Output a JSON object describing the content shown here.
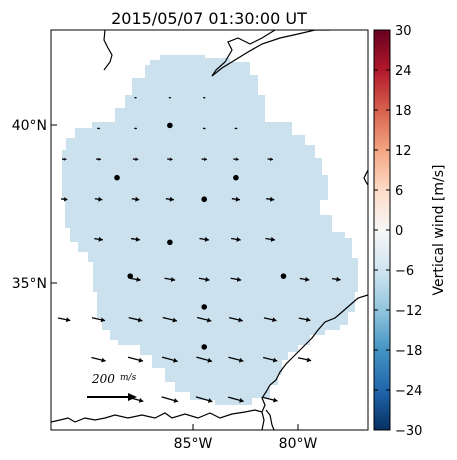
{
  "chart_data": {
    "type": "map",
    "title": "2015/05/07 01:30:00 UT",
    "x_ticks": [
      "85°W",
      "80°W"
    ],
    "y_ticks": [
      "40°N",
      "35°N"
    ],
    "lon_range": [
      -89,
      -77
    ],
    "lat_range": [
      30,
      43
    ],
    "colorbar": {
      "label": "Vertical wind [m/s]",
      "range": [
        -30,
        30
      ],
      "ticks": [
        "30",
        "24",
        "18",
        "12",
        "6",
        "0",
        "−6",
        "−12",
        "−18",
        "−24",
        "−30"
      ],
      "colormap": "RdBu_r"
    },
    "coverage_value_m_s": -5,
    "coverage_color": "#cce1ee",
    "stations": [
      {
        "lon": -84.5,
        "lat": 39.9
      },
      {
        "lon": -86.5,
        "lat": 38.2
      },
      {
        "lon": -82.0,
        "lat": 38.2
      },
      {
        "lon": -83.2,
        "lat": 37.5
      },
      {
        "lon": -84.5,
        "lat": 36.1
      },
      {
        "lon": -86.0,
        "lat": 35.0
      },
      {
        "lon": -80.2,
        "lat": 35.0
      },
      {
        "lon": -83.2,
        "lat": 34.0
      },
      {
        "lon": -83.2,
        "lat": 32.7
      }
    ],
    "wind_vectors": [
      {
        "lon": -85.8,
        "lat": 40.8,
        "speed": 10
      },
      {
        "lon": -84.5,
        "lat": 40.8,
        "speed": 10
      },
      {
        "lon": -83.2,
        "lat": 40.8,
        "speed": 10
      },
      {
        "lon": -87.2,
        "lat": 39.8,
        "speed": 12
      },
      {
        "lon": -85.8,
        "lat": 39.8,
        "speed": 12
      },
      {
        "lon": -83.2,
        "lat": 39.8,
        "speed": 12
      },
      {
        "lon": -82.0,
        "lat": 39.8,
        "speed": 12
      },
      {
        "lon": -88.5,
        "lat": 38.8,
        "speed": 20
      },
      {
        "lon": -87.2,
        "lat": 38.8,
        "speed": 22
      },
      {
        "lon": -85.8,
        "lat": 38.8,
        "speed": 25
      },
      {
        "lon": -84.5,
        "lat": 38.8,
        "speed": 25
      },
      {
        "lon": -83.2,
        "lat": 38.8,
        "speed": 25
      },
      {
        "lon": -82.0,
        "lat": 38.8,
        "speed": 25
      },
      {
        "lon": -80.7,
        "lat": 38.8,
        "speed": 25
      },
      {
        "lon": -88.5,
        "lat": 37.5,
        "speed": 30
      },
      {
        "lon": -87.2,
        "lat": 37.5,
        "speed": 35
      },
      {
        "lon": -85.8,
        "lat": 37.5,
        "speed": 35
      },
      {
        "lon": -84.5,
        "lat": 37.5,
        "speed": 38
      },
      {
        "lon": -82.0,
        "lat": 37.5,
        "speed": 38
      },
      {
        "lon": -80.7,
        "lat": 37.5,
        "speed": 38
      },
      {
        "lon": -87.2,
        "lat": 36.2,
        "speed": 40
      },
      {
        "lon": -85.8,
        "lat": 36.2,
        "speed": 42
      },
      {
        "lon": -83.2,
        "lat": 36.2,
        "speed": 45
      },
      {
        "lon": -82.0,
        "lat": 36.2,
        "speed": 45
      },
      {
        "lon": -80.7,
        "lat": 36.2,
        "speed": 45
      },
      {
        "lon": -85.8,
        "lat": 34.9,
        "speed": 48
      },
      {
        "lon": -84.5,
        "lat": 34.9,
        "speed": 50
      },
      {
        "lon": -83.2,
        "lat": 34.9,
        "speed": 50
      },
      {
        "lon": -82.0,
        "lat": 34.9,
        "speed": 50
      },
      {
        "lon": -79.4,
        "lat": 34.9,
        "speed": 45
      },
      {
        "lon": -78.2,
        "lat": 34.9,
        "speed": 40
      },
      {
        "lon": -88.5,
        "lat": 33.6,
        "speed": 58
      },
      {
        "lon": -87.2,
        "lat": 33.6,
        "speed": 62
      },
      {
        "lon": -85.8,
        "lat": 33.6,
        "speed": 65
      },
      {
        "lon": -84.5,
        "lat": 33.6,
        "speed": 68
      },
      {
        "lon": -83.2,
        "lat": 33.6,
        "speed": 68
      },
      {
        "lon": -82.0,
        "lat": 33.6,
        "speed": 65
      },
      {
        "lon": -80.7,
        "lat": 33.6,
        "speed": 60
      },
      {
        "lon": -79.4,
        "lat": 33.6,
        "speed": 55
      },
      {
        "lon": -87.2,
        "lat": 32.3,
        "speed": 68
      },
      {
        "lon": -85.8,
        "lat": 32.3,
        "speed": 72
      },
      {
        "lon": -84.5,
        "lat": 32.3,
        "speed": 75
      },
      {
        "lon": -83.2,
        "lat": 32.3,
        "speed": 75
      },
      {
        "lon": -82.0,
        "lat": 32.3,
        "speed": 72
      },
      {
        "lon": -80.7,
        "lat": 32.3,
        "speed": 68
      },
      {
        "lon": -79.4,
        "lat": 32.3,
        "speed": 62
      },
      {
        "lon": -85.8,
        "lat": 31.0,
        "speed": 75
      },
      {
        "lon": -84.5,
        "lat": 31.0,
        "speed": 80
      },
      {
        "lon": -83.2,
        "lat": 31.0,
        "speed": 80
      },
      {
        "lon": -82.0,
        "lat": 31.0,
        "speed": 75
      },
      {
        "lon": -80.7,
        "lat": 31.0,
        "speed": 70
      }
    ],
    "scale_vector": {
      "label_value": "200",
      "label_units": "m/s",
      "speed": 200
    }
  }
}
